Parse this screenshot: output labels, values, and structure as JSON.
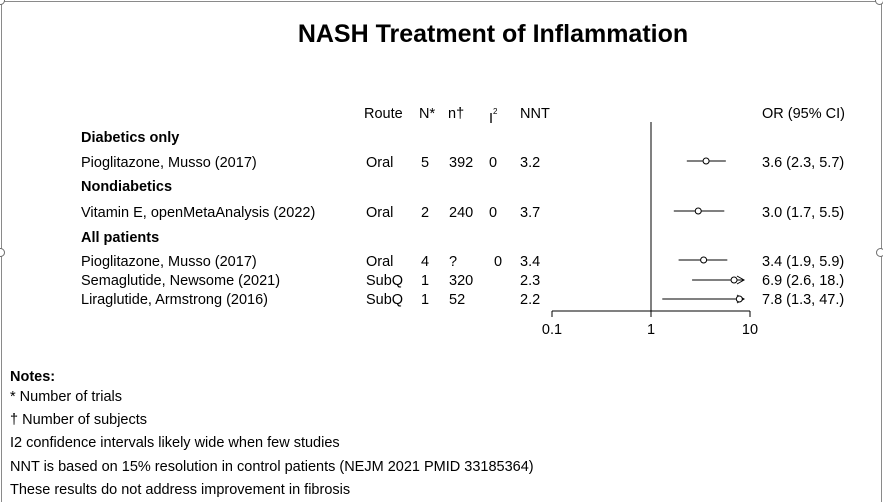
{
  "title": "NASH Treatment of Inflammation",
  "headers": {
    "route": "Route",
    "n_trials": "N*",
    "n_subjects": "n†",
    "i2_base": "I",
    "i2_sup": "2",
    "nnt": "NNT",
    "or": "OR (95% CI)"
  },
  "groups": [
    {
      "label": "Diabetics only",
      "rows": [
        {
          "study": "Pioglitazone, Musso (2017)",
          "route": "Oral",
          "N": "5",
          "n": "392",
          "i2": "0",
          "nnt": "3.2",
          "or_text": "3.6 (2.3, 5.7)"
        }
      ]
    },
    {
      "label": "Nondiabetics",
      "rows": [
        {
          "study": "Vitamin E, openMetaAnalysis (2022)",
          "route": "Oral",
          "N": "2",
          "n": "240",
          "i2": "0",
          "nnt": "3.7",
          "or_text": "3.0 (1.7, 5.5)"
        }
      ]
    },
    {
      "label": "All patients",
      "rows": [
        {
          "study": "Pioglitazone, Musso (2017)",
          "route": "Oral",
          "N": "4",
          "n": "?",
          "i2": "0",
          "nnt": "3.4",
          "or_text": "3.4 (1.9, 5.9)"
        },
        {
          "study": "Semaglutide, Newsome (2021)",
          "route": "SubQ",
          "N": "1",
          "n": "320",
          "i2": "",
          "nnt": "2.3",
          "or_text": "6.9 (2.6,  18.)"
        },
        {
          "study": "Liraglutide, Armstrong (2016)",
          "route": "SubQ",
          "N": "1",
          "n": "52",
          "i2": "",
          "nnt": "2.2",
          "or_text": "7.8 (1.3,  47.)"
        }
      ]
    }
  ],
  "chart_data": {
    "type": "forest",
    "scale": "log",
    "xlim": [
      0.1,
      10
    ],
    "x_ticks": [
      "0.1",
      "1",
      "10"
    ],
    "reference_line": 1,
    "points": [
      {
        "study": "Pioglitazone, Musso (2017)",
        "group": "Diabetics only",
        "or": 3.6,
        "lo": 2.3,
        "hi": 5.7
      },
      {
        "study": "Vitamin E, openMetaAnalysis (2022)",
        "group": "Nondiabetics",
        "or": 3.0,
        "lo": 1.7,
        "hi": 5.5
      },
      {
        "study": "Pioglitazone, Musso (2017)",
        "group": "All patients",
        "or": 3.4,
        "lo": 1.9,
        "hi": 5.9
      },
      {
        "study": "Semaglutide, Newsome (2021)",
        "group": "All patients",
        "or": 6.9,
        "lo": 2.6,
        "hi": 18
      },
      {
        "study": "Liraglutide, Armstrong (2016)",
        "group": "All patients",
        "or": 7.8,
        "lo": 1.3,
        "hi": 47
      }
    ]
  },
  "notes": {
    "title": "Notes:",
    "lines": [
      "* Number of trials",
      "† Number of subjects",
      "I2 confidence intervals likely wide when few studies",
      "NNT is based on 15% resolution in control patients (NEJM 2021 PMID 33185364)",
      "These results do not address improvement in fibrosis"
    ]
  }
}
